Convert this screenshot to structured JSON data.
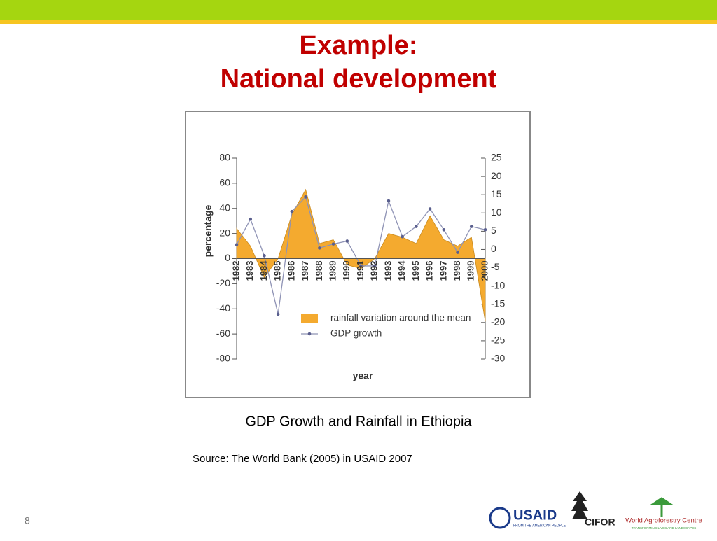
{
  "slide": {
    "title_line1": "Example:",
    "title_line2": "National development",
    "caption": "GDP Growth and Rainfall in Ethiopia",
    "source": "Source: The World Bank (2005) in USAID 2007",
    "page_number": "8",
    "logos": {
      "usaid": "USAID",
      "usaid_tagline": "FROM THE AMERICAN PEOPLE",
      "cifor": "CIFOR",
      "icraf": "World Agroforestry Centre",
      "icraf_tagline": "TRANSFORMING LIVES AND LANDSCAPES"
    }
  },
  "chart_data": {
    "type": "area_line",
    "y_label": "percentage",
    "x_label": "year",
    "categories": [
      "1982",
      "1983",
      "1984",
      "1985",
      "1986",
      "1987",
      "1988",
      "1989",
      "1990",
      "1991",
      "1992",
      "1993",
      "1994",
      "1995",
      "1996",
      "1997",
      "1998",
      "1999",
      "2000"
    ],
    "series": [
      {
        "name": "rainfall variation around the mean",
        "type": "area",
        "color": "#f4aa2f",
        "values": [
          24,
          10,
          -15,
          0,
          35,
          55,
          12,
          15,
          -5,
          -8,
          0,
          20,
          17,
          12,
          34,
          15,
          10,
          17,
          -50
        ]
      },
      {
        "name": "GDP growth",
        "type": "line",
        "axis": "y2",
        "color": "#8f93b5",
        "values": [
          1.3,
          8.3,
          -1.7,
          -17.7,
          10.4,
          14.4,
          0.4,
          1.5,
          2.3,
          -4.5,
          -4.5,
          13.3,
          3.5,
          6.3,
          11.1,
          5.4,
          -0.8,
          6.3,
          5.4
        ]
      }
    ],
    "ylim": [
      -80,
      80
    ],
    "yticks": [
      -80,
      -60,
      -40,
      -20,
      0,
      20,
      40,
      60,
      80
    ],
    "y2lim": [
      -30,
      25
    ],
    "y2ticks": [
      -30,
      -25,
      -20,
      -15,
      -10,
      -5,
      0,
      5,
      10,
      15,
      20,
      25
    ]
  }
}
